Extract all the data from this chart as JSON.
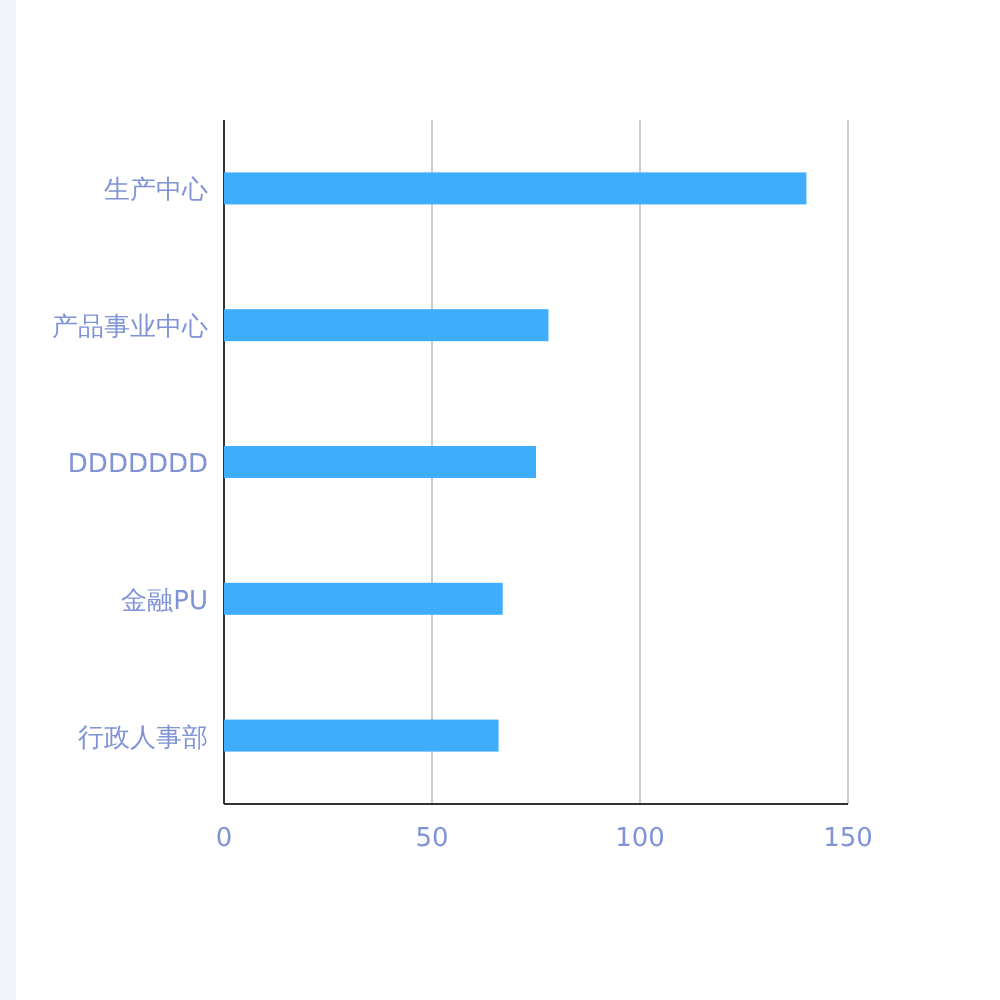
{
  "chart_data": {
    "type": "bar",
    "orientation": "horizontal",
    "categories": [
      "生产中心",
      "产品事业中心",
      "DDDDDDD",
      "金融PU",
      "行政人事部"
    ],
    "values": [
      140,
      78,
      75,
      67,
      66
    ],
    "color": "#3fadfd",
    "xlim": [
      0,
      150
    ],
    "xticks": [
      0,
      50,
      100,
      150
    ],
    "grid": "x"
  }
}
